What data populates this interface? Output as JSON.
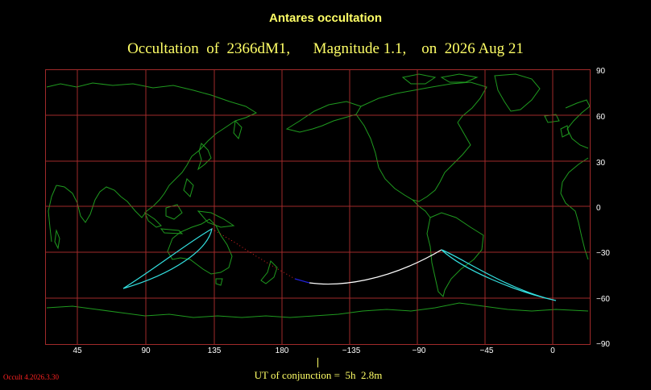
{
  "heading": "Antares occultation",
  "subheading": "Occultation  of  2366dM1,      Magnitude 1.1,    on  2026 Aug 21",
  "y_axis_labels": [
    "90",
    "60",
    "30",
    "0",
    "−30",
    "−60",
    "−90"
  ],
  "x_axis_labels": [
    "45",
    "90",
    "135",
    "180",
    "−135",
    "−90",
    "−45",
    "0"
  ],
  "ut_label": "UT of conjunction =  5h  2.8m",
  "version": "Occult 4.2026.3.30",
  "colors": {
    "grid": "#a02a2a",
    "coastline": "#1f9a1f",
    "limit_curve": "#33e0e0",
    "central_track": "#ffffff",
    "track_segment": "#2222dd",
    "dotted_track": "#dd2222",
    "text": "#ffff66"
  }
}
